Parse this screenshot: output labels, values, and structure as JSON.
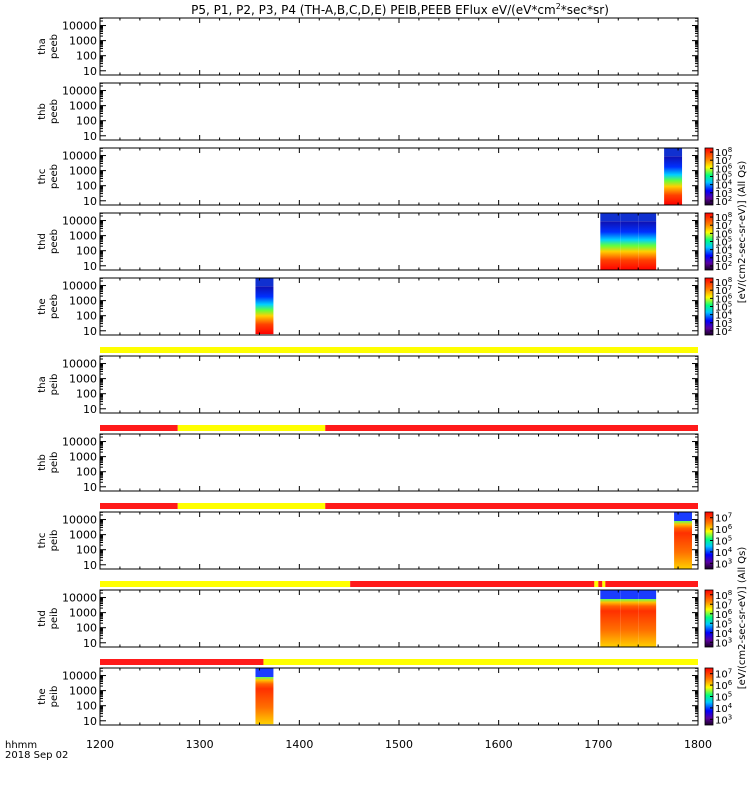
{
  "chart_data": {
    "type": "heatmap",
    "title": "P5, P1, P2, P3, P4 (TH-A,B,C,D,E) PEIB,PEEB EFlux eV/(eV*cm",
    "title_sup": "2",
    "title_tail": "*sec*sr)",
    "x_range": [
      1200,
      1800
    ],
    "x_ticks": [
      "1200",
      "1300",
      "1400",
      "1500",
      "1600",
      "1700",
      "1800"
    ],
    "x_label_line1": "hhmm",
    "x_label_line2": "2018 Sep 02",
    "y_ticks": [
      "10",
      "100",
      "1000",
      "10000"
    ],
    "y_range_log": [
      0.72,
      4.5
    ],
    "panels": [
      {
        "name": "tha-peeb",
        "label1": "tha",
        "label2": "peeb",
        "flag_bar": null,
        "blocks": [],
        "colorbar": false
      },
      {
        "name": "thb-peeb",
        "label1": "thb",
        "label2": "peeb",
        "flag_bar": null,
        "blocks": [],
        "colorbar": false
      },
      {
        "name": "thc-peeb",
        "label1": "thc",
        "label2": "peeb",
        "flag_bar": null,
        "blocks": [
          {
            "x0": 1766,
            "x1": 1784
          }
        ],
        "colorbar": true,
        "colorbar_ticks": [
          "10",
          "10",
          "10",
          "10",
          "10",
          "10",
          "10"
        ],
        "colorbar_exps": [
          "2",
          "3",
          "4",
          "5",
          "6",
          "7",
          "8"
        ]
      },
      {
        "name": "thd-peeb",
        "label1": "thd",
        "label2": "peeb",
        "flag_bar": null,
        "blocks": [
          {
            "x0": 1702,
            "x1": 1722
          },
          {
            "x0": 1722,
            "x1": 1740
          },
          {
            "x0": 1740,
            "x1": 1758
          }
        ],
        "colorbar": true,
        "colorbar_ticks": [
          "10",
          "10",
          "10",
          "10",
          "10",
          "10",
          "10"
        ],
        "colorbar_exps": [
          "2",
          "3",
          "4",
          "5",
          "6",
          "7",
          "8"
        ]
      },
      {
        "name": "the-peeb",
        "label1": "the",
        "label2": "peeb",
        "flag_bar": null,
        "blocks": [
          {
            "x0": 1356,
            "x1": 1374
          }
        ],
        "colorbar": true,
        "colorbar_ticks": [
          "10",
          "10",
          "10",
          "10",
          "10",
          "10",
          "10"
        ],
        "colorbar_exps": [
          "2",
          "3",
          "4",
          "5",
          "6",
          "7",
          "8"
        ]
      },
      {
        "name": "tha-peib",
        "label1": "tha",
        "label2": "peib",
        "flag_bar": [
          {
            "x0": 1200,
            "x1": 1800,
            "state": "yellow"
          }
        ],
        "blocks": [],
        "colorbar": false
      },
      {
        "name": "thb-peib",
        "label1": "thb",
        "label2": "peib",
        "flag_bar": [
          {
            "x0": 1200,
            "x1": 1278,
            "state": "red"
          },
          {
            "x0": 1278,
            "x1": 1426,
            "state": "yellow"
          },
          {
            "x0": 1426,
            "x1": 1800,
            "state": "red"
          }
        ],
        "blocks": [],
        "colorbar": false
      },
      {
        "name": "thc-peib",
        "label1": "thc",
        "label2": "peib",
        "flag_bar": [
          {
            "x0": 1200,
            "x1": 1278,
            "state": "red"
          },
          {
            "x0": 1278,
            "x1": 1426,
            "state": "yellow"
          },
          {
            "x0": 1426,
            "x1": 1800,
            "state": "red"
          }
        ],
        "blocks": [
          {
            "x0": 1776,
            "x1": 1794
          }
        ],
        "colorbar": true,
        "colorbar_ticks": [
          "10",
          "10",
          "10",
          "10",
          "10"
        ],
        "colorbar_exps": [
          "3",
          "4",
          "5",
          "6",
          "7"
        ]
      },
      {
        "name": "thd-peib",
        "label1": "thd",
        "label2": "peib",
        "flag_bar": [
          {
            "x0": 1200,
            "x1": 1451,
            "state": "yellow"
          },
          {
            "x0": 1451,
            "x1": 1696,
            "state": "red"
          },
          {
            "x0": 1696,
            "x1": 1700,
            "state": "yellow"
          },
          {
            "x0": 1700,
            "x1": 1704,
            "state": "red"
          },
          {
            "x0": 1704,
            "x1": 1707,
            "state": "yellow"
          },
          {
            "x0": 1707,
            "x1": 1800,
            "state": "red"
          }
        ],
        "blocks": [
          {
            "x0": 1702,
            "x1": 1722
          },
          {
            "x0": 1722,
            "x1": 1740
          },
          {
            "x0": 1740,
            "x1": 1758
          }
        ],
        "colorbar": true,
        "colorbar_ticks": [
          "10",
          "10",
          "10",
          "10",
          "10",
          "10"
        ],
        "colorbar_exps": [
          "3",
          "4",
          "5",
          "6",
          "7",
          "8"
        ]
      },
      {
        "name": "the-peib",
        "label1": "the",
        "label2": "peib",
        "flag_bar": [
          {
            "x0": 1200,
            "x1": 1364,
            "state": "red"
          },
          {
            "x0": 1364,
            "x1": 1800,
            "state": "yellow"
          }
        ],
        "blocks": [
          {
            "x0": 1356,
            "x1": 1374
          }
        ],
        "colorbar": true,
        "colorbar_ticks": [
          "10",
          "10",
          "10",
          "10",
          "10"
        ],
        "colorbar_exps": [
          "3",
          "4",
          "5",
          "6",
          "7"
        ]
      }
    ],
    "colorbar_label_top": "[eV/(cm2-sec-sr-eV)] (All Qs)",
    "colorbar_label_bottom": "[eV/(cm2-sec-sr-eV)] (All Qs)",
    "colors": {
      "flag_red": "#ff1a1a",
      "flag_yellow": "#ffff00"
    }
  }
}
